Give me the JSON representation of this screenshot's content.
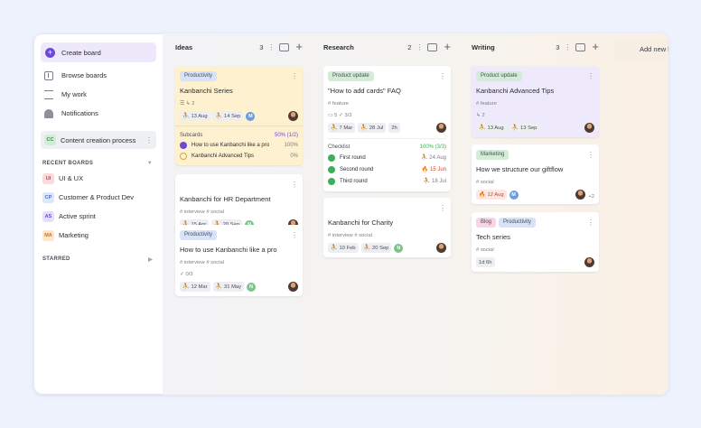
{
  "sidebar": {
    "create_board": "Create board",
    "nav": [
      {
        "label": "Browse boards",
        "icon": "browse-icon"
      },
      {
        "label": "My work",
        "icon": "work-icon"
      },
      {
        "label": "Notifications",
        "icon": "bell-icon"
      }
    ],
    "current_board": {
      "badge": "CC",
      "label": "Content creation process"
    },
    "recent_label": "RECENT BOARDS",
    "recent_boards": [
      {
        "badge": "UI",
        "label": "UI & UX",
        "bg": "#fbd9dc",
        "fg": "#c24b56"
      },
      {
        "badge": "CP",
        "label": "Customer & Product Dev",
        "bg": "#dbe7fb",
        "fg": "#4a72c0"
      },
      {
        "badge": "AS",
        "label": "Active sprint",
        "bg": "#e6e0fa",
        "fg": "#6c4bd4"
      },
      {
        "badge": "MA",
        "label": "Marketing",
        "bg": "#fde6c9",
        "fg": "#c57b21"
      }
    ],
    "starred_label": "STARRED"
  },
  "add_list": "Add new l",
  "columns": [
    {
      "name": "Ideas",
      "count": "3",
      "cards": [
        {
          "tags": [
            {
              "label": "Productivity",
              "color": "#d7e3fb"
            }
          ],
          "title": "Kanbanchi Series",
          "meta": "☰ ↳ 2",
          "dates": [
            "13 Aug",
            "14 Sep"
          ],
          "avatar_letter": "M",
          "subcards": {
            "label": "Subcards",
            "pct": "50% (1/2)",
            "items": [
              {
                "label": "How to use Kanbanchi like a pro",
                "pct": "100%",
                "done": true
              },
              {
                "label": "Kanbanchi Advanced Tips",
                "pct": "0%",
                "done": false
              }
            ]
          }
        },
        {
          "title": "Kanbanchi for HR Department",
          "meta": "# interview # social",
          "dates": [
            "15 Apr",
            "20 Sep"
          ],
          "avatar_letter": "N"
        },
        {
          "tags": [
            {
              "label": "Productivity",
              "color": "#d7e3fb"
            }
          ],
          "title": "How to use Kanbanchi like a pro",
          "meta": "# interview # social",
          "meta2": "✓ 0/3",
          "dates": [
            "12 Mar",
            "31 May"
          ],
          "avatar_letter": "N"
        }
      ]
    },
    {
      "name": "Research",
      "count": "2",
      "cards": [
        {
          "tags": [
            {
              "label": "Product update",
              "color": "#d3ecd6"
            }
          ],
          "title": "\"How to add cards\" FAQ",
          "meta": "# feature",
          "meta2": "▭ 5 ✓ 3/3",
          "dates": [
            "7 Mar",
            "28 Jul",
            "2h"
          ],
          "checklist": {
            "label": "Checklist",
            "pct": "100% (3/3)",
            "items": [
              {
                "label": "First round",
                "date": "24 Aug",
                "overdue": false
              },
              {
                "label": "Second round",
                "date": "15 Jun",
                "overdue": true
              },
              {
                "label": "Third round",
                "date": "18 Jul",
                "overdue": false
              }
            ]
          }
        },
        {
          "title": "Kanbanchi for Charity",
          "meta": "# interview # social",
          "dates": [
            "10 Feb",
            "20 Sep"
          ],
          "avatar_letter": "N"
        }
      ]
    },
    {
      "name": "Writing",
      "count": "3",
      "cards": [
        {
          "tags": [
            {
              "label": "Product update",
              "color": "#d3ecd6"
            }
          ],
          "title": "Kanbanchi Advanced Tips",
          "meta": "# feature",
          "meta2": "↳ 2",
          "dates": [
            "13 Aug",
            "13 Sep"
          ]
        },
        {
          "tags": [
            {
              "label": "Marketing",
              "color": "#d3ecd6"
            }
          ],
          "title": "How we structure our giftflow",
          "meta": "# social",
          "dates": [
            "12 Aug"
          ],
          "avatar_letter": "M",
          "extra": "+2"
        },
        {
          "tags": [
            {
              "label": "Blog",
              "color": "#fbd4e3"
            },
            {
              "label": "Productivity",
              "color": "#d7e3fb"
            }
          ],
          "title": "Tech series",
          "meta": "# social",
          "dates": [
            "1d 6h"
          ]
        }
      ]
    }
  ],
  "colors": {
    "accent": "#6c4bd4",
    "yellow_card": "#fdf1cf",
    "purple_card": "#eeeafc"
  }
}
